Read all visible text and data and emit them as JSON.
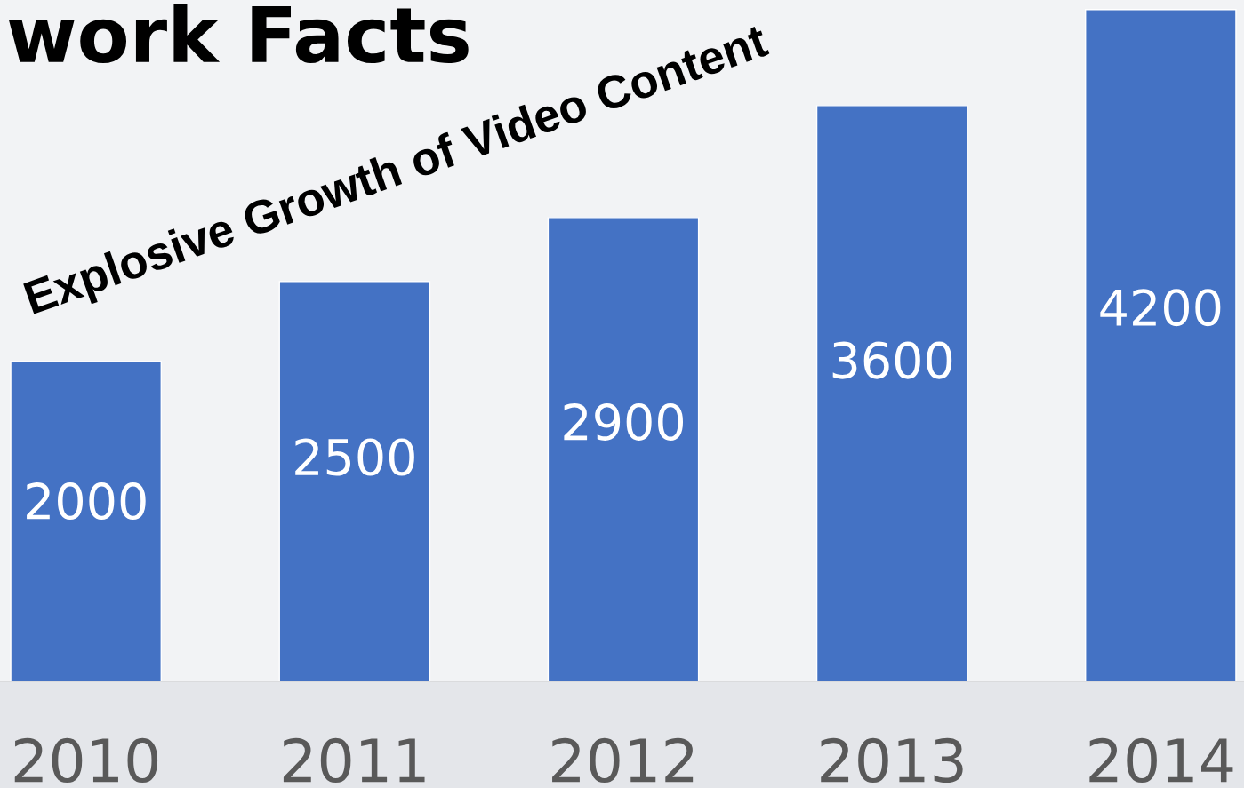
{
  "chart_data": {
    "type": "bar",
    "title": "work Facts",
    "categories": [
      "2010",
      "2011",
      "2012",
      "2013",
      "2014"
    ],
    "values": [
      2000,
      2500,
      2900,
      3600,
      4200
    ],
    "color": "#4472c4",
    "ylim": [
      0,
      4260
    ],
    "tick_labels": "x",
    "data_labels": true,
    "annotations": [
      "Explosive Growth of Video Content"
    ]
  }
}
